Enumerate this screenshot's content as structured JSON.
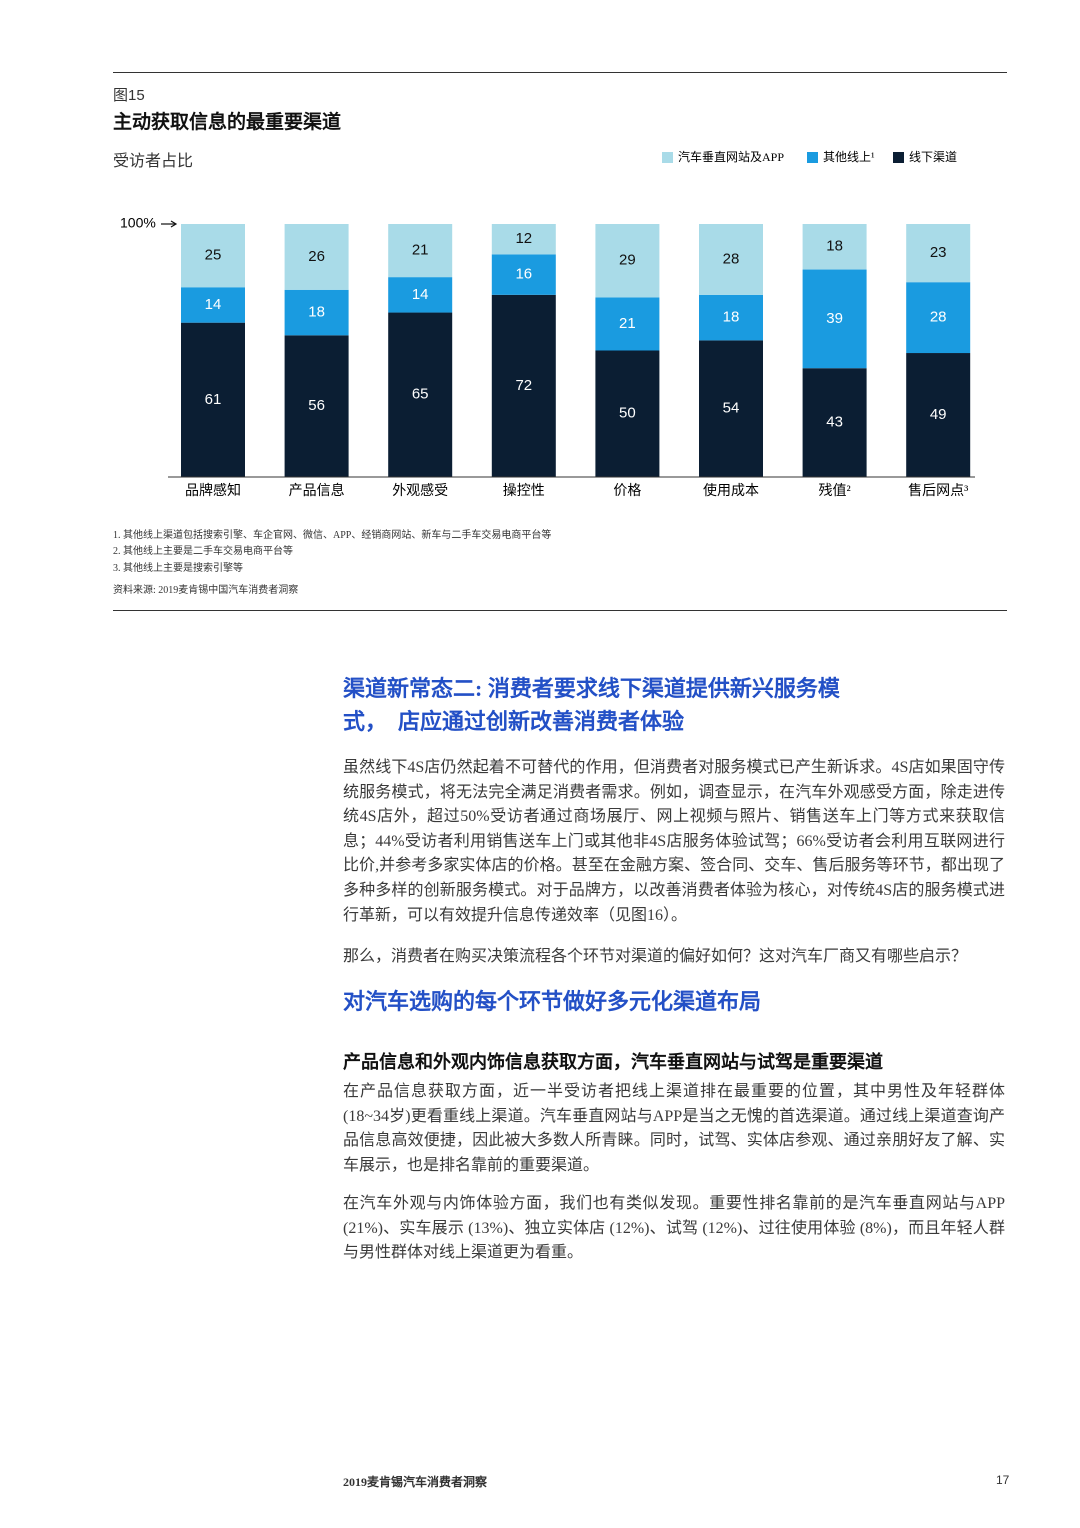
{
  "figure": {
    "label": "图15",
    "footnotes": [
      "1.  其他线上渠道包括搜索引擎、车企官网、微信、APP、经销商网站、新车与二手车交易电商平台等",
      "2.  其他线上主要是二手车交易电商平台等",
      "3.  其他线上主要是搜索引擎等"
    ],
    "source": "资料来源: 2019麦肯锡中国汽车消费者洞察"
  },
  "chart_data": {
    "type": "stacked-bar",
    "title": "主动获取信息的最重要渠道",
    "subtitle": "受访者占比",
    "categories": [
      "品牌感知",
      "产品信息",
      "外观感受",
      "操控性",
      "价格",
      "使用成本",
      "残值²",
      "售后网点³"
    ],
    "series": [
      {
        "name": "汽车垂直网站及APP",
        "color": "#a9dbe8",
        "values": [
          25,
          26,
          21,
          12,
          29,
          28,
          18,
          23
        ]
      },
      {
        "name": "其他线上¹",
        "color": "#1a9be0",
        "values": [
          14,
          18,
          14,
          16,
          21,
          18,
          39,
          28
        ]
      },
      {
        "name": "线下渠道",
        "color": "#0b1e33",
        "values": [
          61,
          56,
          65,
          72,
          50,
          54,
          43,
          49
        ]
      }
    ],
    "ylim": [
      0,
      100
    ],
    "yticks": [
      {
        "value": 100,
        "label": "100%"
      }
    ],
    "legend": "top-right"
  },
  "article": {
    "heading": "渠道新常态二: 消费者要求线下渠道提供新兴服务模式，　店应通过创新改善消费者体验",
    "paragraphs": [
      "虽然线下4S店仍然起着不可替代的作用，但消费者对服务模式已产生新诉求。4S店如果固守传统服务模式，将无法完全满足消费者需求。例如，调查显示，在汽车外观感受方面，除走进传统4S店外，超过50%受访者通过商场展厅、网上视频与照片、销售送车上门等方式来获取信息；44%受访者利用销售送车上门或其他非4S店服务体验试驾；66%受访者会利用互联网进行比价,并参考多家实体店的价格。甚至在金融方案、签合同、交车、售后服务等环节，都出现了多种多样的创新服务模式。对于品牌方，以改善消费者体验为核心，对传统4S店的服务模式进行革新，可以有效提升信息传递效率（见图16）。",
      "那么，消费者在购买决策流程各个环节对渠道的偏好如何？这对汽车厂商又有哪些启示？"
    ],
    "heading2": "对汽车选购的每个环节做好多元化渠道布局",
    "subheading": "产品信息和外观内饰信息获取方面，汽车垂直网站与试驾是重要渠道",
    "paragraphs2": [
      "在产品信息获取方面，近一半受访者把线上渠道排在最重要的位置，其中男性及年轻群体(18~34岁)更看重线上渠道。汽车垂直网站与APP是当之无愧的首选渠道。通过线上渠道查询产品信息高效便捷，因此被大多数人所青睐。同时，试驾、实体店参观、通过亲朋好友了解、实车展示，也是排名靠前的重要渠道。",
      "在汽车外观与内饰体验方面，我们也有类似发现。重要性排名靠前的是汽车垂直网站与APP (21%)、实车展示 (13%)、独立实体店 (12%)、试驾 (12%)、过往使用体验 (8%)，而且年轻人群与男性群体对线上渠道更为看重。"
    ]
  },
  "footer": {
    "title": "2019麦肯锡汽车消费者洞察",
    "page": "17"
  }
}
